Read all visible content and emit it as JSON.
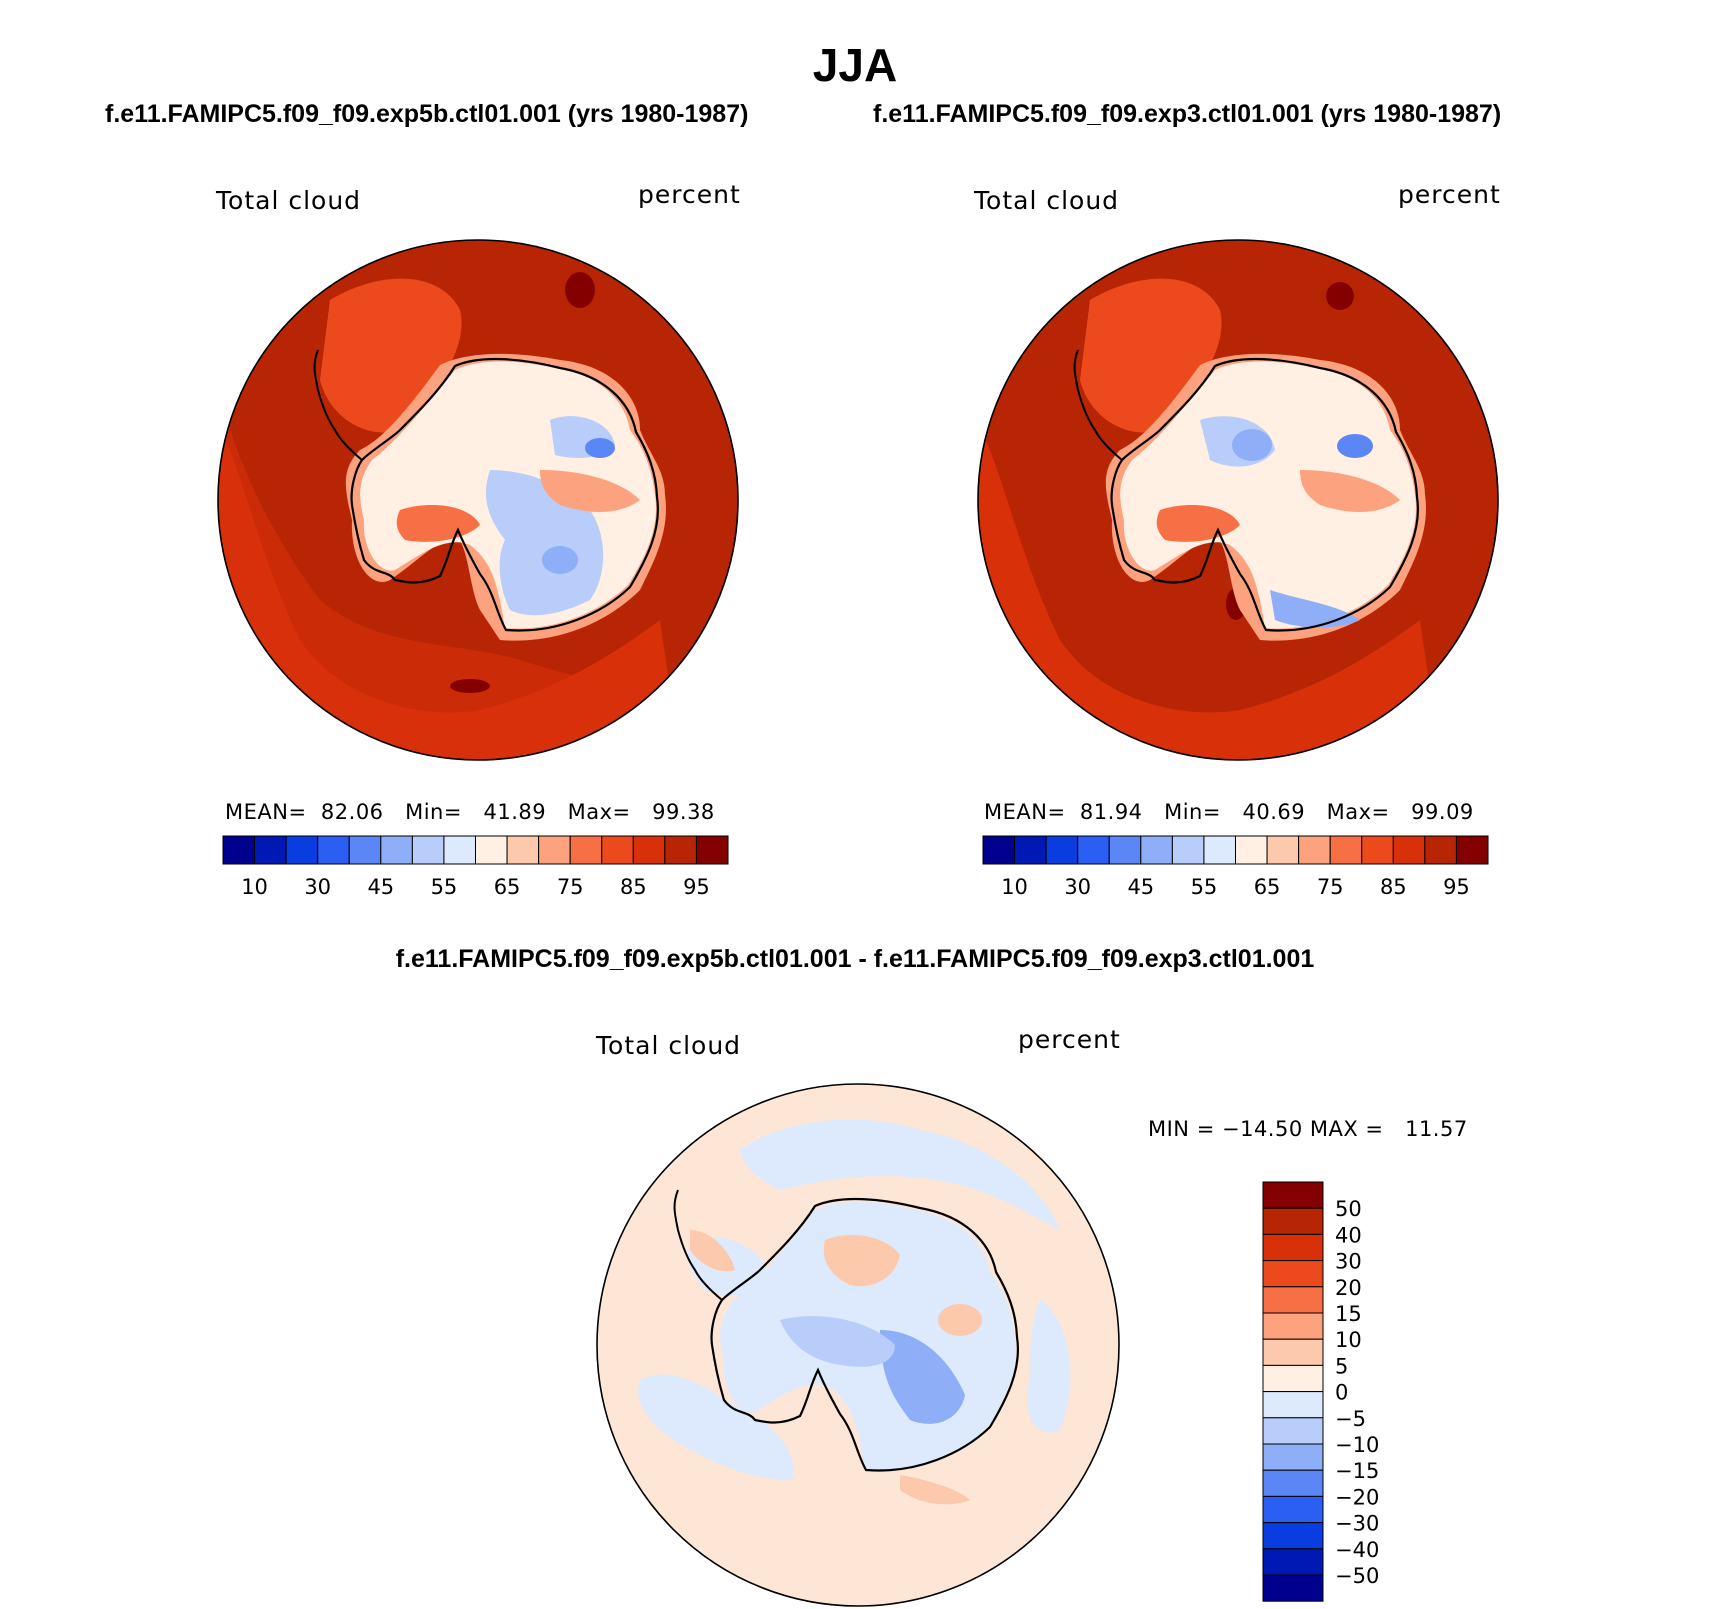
{
  "figure": {
    "title": "JJA"
  },
  "panels": [
    {
      "case": "f.e11.FAMIPC5.f09_f09.exp5b.ctl01.001 (yrs 1980-1987)",
      "variable": "Total cloud",
      "units": "percent",
      "mean_label": "MEAN=",
      "mean": "82.06",
      "min_label": "Min=",
      "min": "41.89",
      "max_label": "Max=",
      "max": "99.38"
    },
    {
      "case": "f.e11.FAMIPC5.f09_f09.exp3.ctl01.001 (yrs 1980-1987)",
      "variable": "Total cloud",
      "units": "percent",
      "mean_label": "MEAN=",
      "mean": "81.94",
      "min_label": "Min=",
      "min": "40.69",
      "max_label": "Max=",
      "max": "99.09"
    }
  ],
  "difference": {
    "case": "f.e11.FAMIPC5.f09_f09.exp5b.ctl01.001 - f.e11.FAMIPC5.f09_f09.exp3.ctl01.001",
    "variable": "Total cloud",
    "units": "percent",
    "min_label": "MIN =",
    "min": "−14.50",
    "max_label": "MAX =",
    "max": "11.57"
  },
  "colorbar_abs": {
    "tick_labels": [
      "10",
      "30",
      "45",
      "55",
      "65",
      "75",
      "85",
      "95"
    ],
    "colors": [
      "#00008f",
      "#0018b4",
      "#0a3de0",
      "#2b5ef2",
      "#5b86f5",
      "#8eaef8",
      "#b8cdfa",
      "#dde9fc",
      "#fff0e3",
      "#fdc9ad",
      "#fca27e",
      "#f76f45",
      "#ec4a1c",
      "#d8310a",
      "#b82505",
      "#840000"
    ]
  },
  "colorbar_diff": {
    "labels": [
      "50",
      "40",
      "30",
      "20",
      "15",
      "10",
      "5",
      "0",
      "−5",
      "−10",
      "−15",
      "−20",
      "−30",
      "−40",
      "−50"
    ],
    "colors": [
      "#840000",
      "#b82505",
      "#d8310a",
      "#ec4a1c",
      "#f76f45",
      "#fca27e",
      "#fdc9ad",
      "#fff0e3",
      "#dde9fc",
      "#b8cdfa",
      "#8eaef8",
      "#5b86f5",
      "#2b5ef2",
      "#0a3de0",
      "#0018b4",
      "#00008f"
    ]
  }
}
